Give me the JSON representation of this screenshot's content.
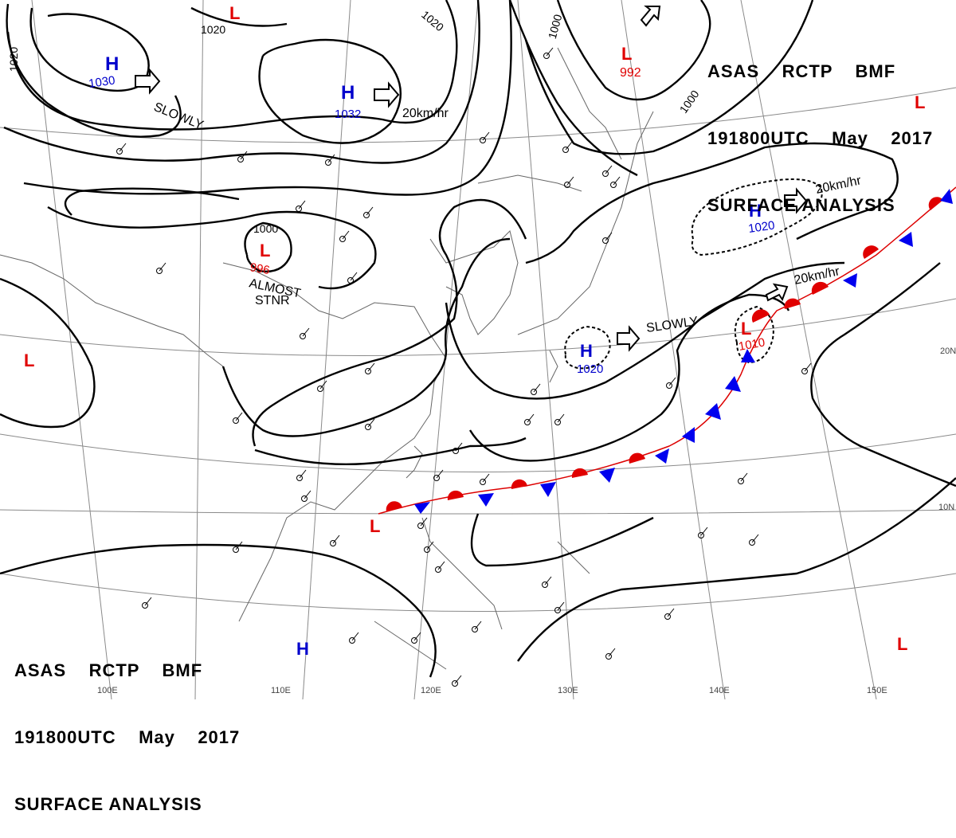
{
  "header_top": {
    "line1": "ASAS    RCTP    BMF",
    "line2": "191800UTC    May    2017",
    "line3": "SURFACE ANALYSIS"
  },
  "header_bottom": {
    "line1": "ASAS    RCTP    BMF",
    "line2": "191800UTC    May    2017",
    "line3": "SURFACE ANALYSIS"
  },
  "colors": {
    "high": "#0000cc",
    "low": "#e00000",
    "isobar": "#000000",
    "warm_front": "#e00000",
    "cold_front": "#0000ee",
    "grid": "#888888"
  },
  "pressure_systems": [
    {
      "id": "high-1030",
      "type": "H",
      "value": "1030"
    },
    {
      "id": "high-1032",
      "type": "H",
      "value": "1032"
    },
    {
      "id": "low-992",
      "type": "L",
      "value": "992"
    },
    {
      "id": "low-996",
      "type": "L",
      "value": "996"
    },
    {
      "id": "high-1020-east",
      "type": "H",
      "value": "1020"
    },
    {
      "id": "high-1020-south",
      "type": "H",
      "value": "1020"
    },
    {
      "id": "low-1010",
      "type": "L",
      "value": "1010"
    },
    {
      "id": "low-top",
      "type": "L",
      "value": ""
    },
    {
      "id": "low-west",
      "type": "L",
      "value": ""
    },
    {
      "id": "low-southwest",
      "type": "L",
      "value": ""
    },
    {
      "id": "low-northeast",
      "type": "L",
      "value": ""
    },
    {
      "id": "low-southeast",
      "type": "L",
      "value": ""
    },
    {
      "id": "high-south",
      "type": "H",
      "value": ""
    }
  ],
  "isobar_labels": [
    "1020",
    "1020",
    "1020",
    "1000",
    "1000",
    "1000"
  ],
  "motion_labels": [
    "SLOWLY",
    "20km/hr",
    "20km/hr",
    "20km/hr",
    "SLOWLY",
    "ALMOST",
    "STNR"
  ],
  "graticule_labels": [
    "20N",
    "10N",
    "100E",
    "110E",
    "120E",
    "130E",
    "140E",
    "150E"
  ]
}
